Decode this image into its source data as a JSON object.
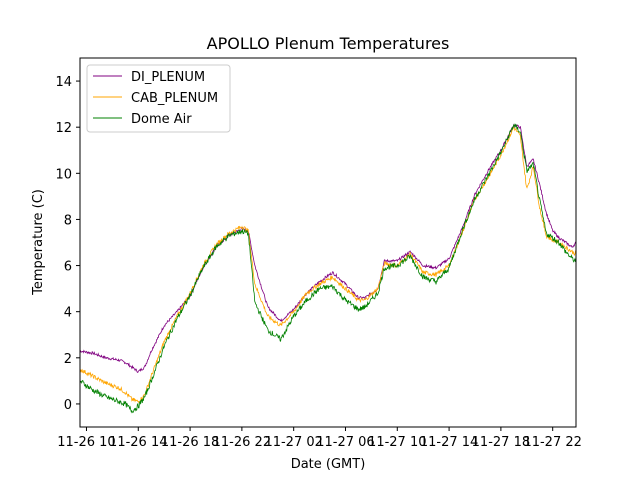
{
  "chart_data": {
    "type": "line",
    "title": "APOLLO Plenum Temperatures",
    "xlabel": "Date (GMT)",
    "ylabel": "Temperature (C)",
    "ylim": [
      -1,
      15
    ],
    "xlim": [
      9.5,
      47.8
    ],
    "x_unit": "hours since 11-26 00:00 GMT",
    "yticks": [
      0,
      2,
      4,
      6,
      8,
      10,
      12,
      14
    ],
    "xticks": [
      {
        "x": 10,
        "label": "11-26 10"
      },
      {
        "x": 14,
        "label": "11-26 14"
      },
      {
        "x": 18,
        "label": "11-26 18"
      },
      {
        "x": 22,
        "label": "11-26 22"
      },
      {
        "x": 26,
        "label": "11-27 02"
      },
      {
        "x": 30,
        "label": "11-27 06"
      },
      {
        "x": 34,
        "label": "11-27 10"
      },
      {
        "x": 38,
        "label": "11-27 14"
      },
      {
        "x": 42,
        "label": "11-27 18"
      },
      {
        "x": 46,
        "label": "11-27 22"
      }
    ],
    "grid": false,
    "legend_position": "top-left",
    "x": [
      9.5,
      10.5,
      11.5,
      12.5,
      13.0,
      13.5,
      14.0,
      14.5,
      15.0,
      16.0,
      17.0,
      18.0,
      19.0,
      20.0,
      21.0,
      22.0,
      22.5,
      23.0,
      24.0,
      25.0,
      26.0,
      27.0,
      28.0,
      29.0,
      30.0,
      31.0,
      31.5,
      32.5,
      33.0,
      34.0,
      35.0,
      36.0,
      37.0,
      38.0,
      39.0,
      40.0,
      41.0,
      42.0,
      43.0,
      43.5,
      44.0,
      44.5,
      45.0,
      45.5,
      46.0,
      46.5,
      47.0,
      47.5,
      47.8
    ],
    "series": [
      {
        "name": "DI_PLENUM",
        "color": "#800080",
        "values": [
          2.3,
          2.2,
          2.0,
          1.9,
          1.8,
          1.6,
          1.4,
          1.6,
          2.3,
          3.4,
          4.0,
          4.7,
          5.9,
          6.8,
          7.3,
          7.6,
          7.5,
          6.0,
          4.2,
          3.6,
          4.1,
          4.8,
          5.3,
          5.7,
          5.2,
          4.6,
          4.6,
          5.0,
          6.2,
          6.2,
          6.6,
          6.0,
          5.9,
          6.3,
          7.6,
          9.1,
          10.1,
          11.0,
          12.1,
          12.0,
          10.3,
          10.6,
          9.5,
          8.3,
          7.5,
          7.2,
          7.0,
          6.8,
          7.0
        ]
      },
      {
        "name": "CAB_PLENUM",
        "color": "#FFA500",
        "values": [
          1.5,
          1.2,
          0.9,
          0.7,
          0.5,
          0.2,
          0.1,
          0.4,
          1.2,
          2.7,
          3.8,
          4.8,
          6.0,
          6.9,
          7.4,
          7.7,
          7.5,
          5.2,
          3.8,
          3.4,
          4.0,
          4.8,
          5.2,
          5.5,
          5.0,
          4.5,
          4.5,
          5.0,
          6.1,
          6.0,
          6.5,
          5.7,
          5.6,
          6.0,
          7.4,
          8.9,
          9.8,
          10.8,
          12.0,
          11.6,
          9.3,
          10.3,
          8.5,
          7.3,
          7.1,
          7.0,
          6.8,
          6.6,
          6.5
        ]
      },
      {
        "name": "Dome Air",
        "color": "#008000",
        "values": [
          1.0,
          0.6,
          0.3,
          0.1,
          0.0,
          -0.3,
          -0.1,
          0.3,
          1.0,
          2.5,
          3.7,
          4.7,
          5.9,
          6.8,
          7.3,
          7.5,
          7.4,
          4.4,
          3.2,
          2.8,
          3.8,
          4.5,
          5.0,
          5.1,
          4.5,
          4.1,
          4.2,
          4.8,
          5.9,
          6.0,
          6.4,
          5.5,
          5.3,
          5.9,
          7.5,
          8.9,
          9.9,
          10.9,
          12.1,
          11.8,
          10.1,
          10.4,
          8.8,
          7.4,
          7.2,
          7.0,
          6.6,
          6.3,
          6.2
        ]
      }
    ]
  }
}
